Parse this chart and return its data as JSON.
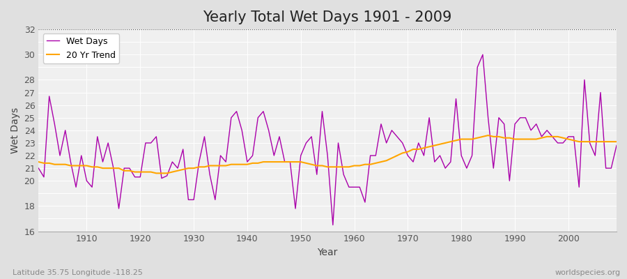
{
  "title": "Yearly Total Wet Days 1901 - 2009",
  "xlabel": "Year",
  "ylabel": "Wet Days",
  "subtitle_left": "Latitude 35.75 Longitude -118.25",
  "subtitle_right": "worldspecies.org",
  "ylim": [
    16,
    32
  ],
  "ytick_labels": [
    16,
    18,
    20,
    21,
    22,
    23,
    24,
    25,
    26,
    27,
    28,
    30,
    32
  ],
  "years": [
    1901,
    1902,
    1903,
    1904,
    1905,
    1906,
    1907,
    1908,
    1909,
    1910,
    1911,
    1912,
    1913,
    1914,
    1915,
    1916,
    1917,
    1918,
    1919,
    1920,
    1921,
    1922,
    1923,
    1924,
    1925,
    1926,
    1927,
    1928,
    1929,
    1930,
    1931,
    1932,
    1933,
    1934,
    1935,
    1936,
    1937,
    1938,
    1939,
    1940,
    1941,
    1942,
    1943,
    1944,
    1945,
    1946,
    1947,
    1948,
    1949,
    1950,
    1951,
    1952,
    1953,
    1954,
    1955,
    1956,
    1957,
    1958,
    1959,
    1960,
    1961,
    1962,
    1963,
    1964,
    1965,
    1966,
    1967,
    1968,
    1969,
    1970,
    1971,
    1972,
    1973,
    1974,
    1975,
    1976,
    1977,
    1978,
    1979,
    1980,
    1981,
    1982,
    1983,
    1984,
    1985,
    1986,
    1987,
    1988,
    1989,
    1990,
    1991,
    1992,
    1993,
    1994,
    1995,
    1996,
    1997,
    1998,
    1999,
    2000,
    2001,
    2002,
    2003,
    2004,
    2005,
    2006,
    2007,
    2008,
    2009
  ],
  "wet_days": [
    21.0,
    20.3,
    26.7,
    24.5,
    22.0,
    24.0,
    21.5,
    19.5,
    22.0,
    20.0,
    19.5,
    23.5,
    21.5,
    23.0,
    21.0,
    17.8,
    21.0,
    21.0,
    20.3,
    20.3,
    23.0,
    23.0,
    23.5,
    20.2,
    20.4,
    21.5,
    21.0,
    22.5,
    18.5,
    18.5,
    21.5,
    23.5,
    20.5,
    18.5,
    22.0,
    21.5,
    25.0,
    25.5,
    24.0,
    21.5,
    22.0,
    25.0,
    25.5,
    24.0,
    22.0,
    23.5,
    21.5,
    21.5,
    17.8,
    22.0,
    23.0,
    23.5,
    20.5,
    25.5,
    22.0,
    16.5,
    23.0,
    20.5,
    19.5,
    19.5,
    19.5,
    18.3,
    22.0,
    22.0,
    24.5,
    23.0,
    24.0,
    23.5,
    23.0,
    22.0,
    21.5,
    23.0,
    22.0,
    25.0,
    21.5,
    22.0,
    21.0,
    21.5,
    26.5,
    22.0,
    21.0,
    22.0,
    29.0,
    30.0,
    25.0,
    21.0,
    25.0,
    24.5,
    20.0,
    24.5,
    25.0,
    25.0,
    24.0,
    24.5,
    23.5,
    24.0,
    23.5,
    23.0,
    23.0,
    23.5,
    23.5,
    19.5,
    28.0,
    23.0,
    22.0,
    27.0,
    21.0,
    21.0,
    22.8
  ],
  "trend": [
    21.5,
    21.4,
    21.4,
    21.3,
    21.3,
    21.3,
    21.2,
    21.2,
    21.2,
    21.2,
    21.1,
    21.1,
    21.0,
    21.0,
    21.0,
    21.0,
    20.8,
    20.8,
    20.7,
    20.7,
    20.7,
    20.7,
    20.6,
    20.6,
    20.6,
    20.7,
    20.8,
    20.9,
    21.0,
    21.0,
    21.1,
    21.1,
    21.2,
    21.2,
    21.2,
    21.2,
    21.3,
    21.3,
    21.3,
    21.3,
    21.4,
    21.4,
    21.5,
    21.5,
    21.5,
    21.5,
    21.5,
    21.5,
    21.5,
    21.5,
    21.4,
    21.3,
    21.2,
    21.2,
    21.1,
    21.1,
    21.1,
    21.1,
    21.1,
    21.2,
    21.2,
    21.3,
    21.3,
    21.4,
    21.5,
    21.6,
    21.8,
    22.0,
    22.2,
    22.3,
    22.5,
    22.5,
    22.6,
    22.7,
    22.8,
    22.9,
    23.0,
    23.1,
    23.2,
    23.3,
    23.3,
    23.3,
    23.4,
    23.5,
    23.6,
    23.5,
    23.5,
    23.4,
    23.4,
    23.3,
    23.3,
    23.3,
    23.3,
    23.3,
    23.4,
    23.5,
    23.5,
    23.5,
    23.4,
    23.3,
    23.2,
    23.1,
    23.1,
    23.1,
    23.1,
    23.1,
    23.1,
    23.1,
    23.1
  ],
  "wet_color": "#aa00aa",
  "trend_color": "#FFA500",
  "bg_color": "#e0e0e0",
  "plot_bg_color": "#f0f0f0",
  "grid_color": "#d8d8d8",
  "title_fontsize": 15,
  "label_fontsize": 10,
  "tick_fontsize": 9,
  "legend_fontsize": 9
}
